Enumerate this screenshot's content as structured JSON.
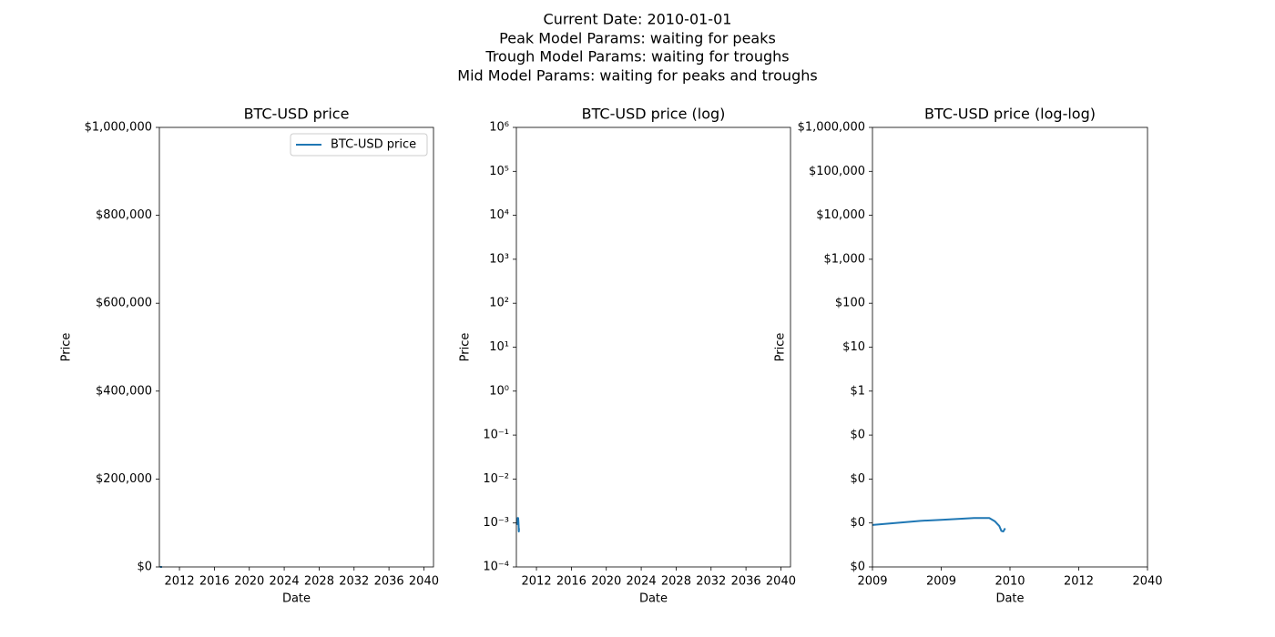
{
  "suptitle": [
    "Current Date: 2010-01-01",
    "Peak Model Params: waiting for peaks",
    "Trough Model Params: waiting for troughs",
    "Mid Model Params: waiting for peaks and troughs"
  ],
  "chart_data": [
    {
      "type": "line",
      "title": "BTC-USD price",
      "x_label": "Date",
      "y_label": "Price",
      "xlim": [
        2009.7,
        2041.1
      ],
      "xticks": [
        2012,
        2016,
        2020,
        2024,
        2028,
        2032,
        2036,
        2040
      ],
      "ylim": [
        0,
        1000000
      ],
      "yticks": [
        {
          "value": 0,
          "label": "$0"
        },
        {
          "value": 200000,
          "label": "$200,000"
        },
        {
          "value": 400000,
          "label": "$400,000"
        },
        {
          "value": 600000,
          "label": "$600,000"
        },
        {
          "value": 800000,
          "label": "$800,000"
        },
        {
          "value": 1000000,
          "label": "$1,000,000"
        }
      ],
      "legend": "upper right",
      "series": [
        {
          "name": "BTC-USD price",
          "color": "#1f77b4",
          "x": [
            2009.77,
            2009.781,
            2009.795,
            2009.822,
            2009.849,
            2009.877,
            2009.904,
            2009.932,
            2009.959,
            2009.973,
            2009.986,
            2010.0
          ],
          "values": [
            0.0009,
            0.00112,
            0.00118,
            0.00125,
            0.0013,
            0.0013,
            0.0013,
            0.0011,
            0.00085,
            0.00066,
            0.00064,
            0.00076
          ]
        }
      ]
    },
    {
      "type": "line",
      "title": "BTC-USD price (log)",
      "x_label": "Date",
      "y_label": "Price",
      "xlim": [
        2009.7,
        2041.1
      ],
      "xticks": [
        2012,
        2016,
        2020,
        2024,
        2028,
        2032,
        2036,
        2040
      ],
      "ylim": [
        0.0001,
        1000000
      ],
      "ylog": true,
      "yticks": [
        {
          "value": 0.0001,
          "label": "10⁻⁴"
        },
        {
          "value": 0.001,
          "label": "10⁻³"
        },
        {
          "value": 0.01,
          "label": "10⁻²"
        },
        {
          "value": 0.1,
          "label": "10⁻¹"
        },
        {
          "value": 1,
          "label": "10⁰"
        },
        {
          "value": 10,
          "label": "10¹"
        },
        {
          "value": 100,
          "label": "10²"
        },
        {
          "value": 1000,
          "label": "10³"
        },
        {
          "value": 10000,
          "label": "10⁴"
        },
        {
          "value": 100000,
          "label": "10⁵"
        },
        {
          "value": 1000000,
          "label": "10⁶"
        }
      ],
      "series": [
        {
          "color": "#1f77b4",
          "x": [
            2009.77,
            2009.781,
            2009.795,
            2009.822,
            2009.849,
            2009.877,
            2009.904,
            2009.932,
            2009.959,
            2009.973,
            2009.986,
            2010.0
          ],
          "values": [
            0.0009,
            0.00112,
            0.00118,
            0.00125,
            0.0013,
            0.0013,
            0.0013,
            0.0011,
            0.00085,
            0.00066,
            0.00064,
            0.00076
          ]
        }
      ]
    },
    {
      "type": "line",
      "title": "BTC-USD price (log-log)",
      "x_label": "Date",
      "y_label": "Price",
      "xlim": [
        1,
        10000
      ],
      "xlog": true,
      "xticks": [
        {
          "value": 1,
          "label": "2009"
        },
        {
          "value": 10,
          "label": "2009"
        },
        {
          "value": 100,
          "label": "2010"
        },
        {
          "value": 1000,
          "label": "2012"
        },
        {
          "value": 10000,
          "label": "2040"
        }
      ],
      "ylim": [
        0.0001,
        1000000
      ],
      "ylog": true,
      "yticks": [
        {
          "value": 0.0001,
          "label": "$0"
        },
        {
          "value": 0.001,
          "label": "$0"
        },
        {
          "value": 0.01,
          "label": "$0"
        },
        {
          "value": 0.1,
          "label": "$0"
        },
        {
          "value": 1,
          "label": "$1"
        },
        {
          "value": 10,
          "label": "$10"
        },
        {
          "value": 100,
          "label": "$100"
        },
        {
          "value": 1000,
          "label": "$1,000"
        },
        {
          "value": 10000,
          "label": "$10,000"
        },
        {
          "value": 100000,
          "label": "$100,000"
        },
        {
          "value": 1000000,
          "label": "$1,000,000"
        }
      ],
      "series": [
        {
          "color": "#1f77b4",
          "x": [
            1,
            5,
            10,
            20,
            30,
            40,
            50,
            60,
            70,
            75,
            80,
            85
          ],
          "values": [
            0.0009,
            0.00112,
            0.00118,
            0.00125,
            0.0013,
            0.0013,
            0.0013,
            0.0011,
            0.00085,
            0.00066,
            0.00064,
            0.00076
          ]
        }
      ]
    }
  ]
}
